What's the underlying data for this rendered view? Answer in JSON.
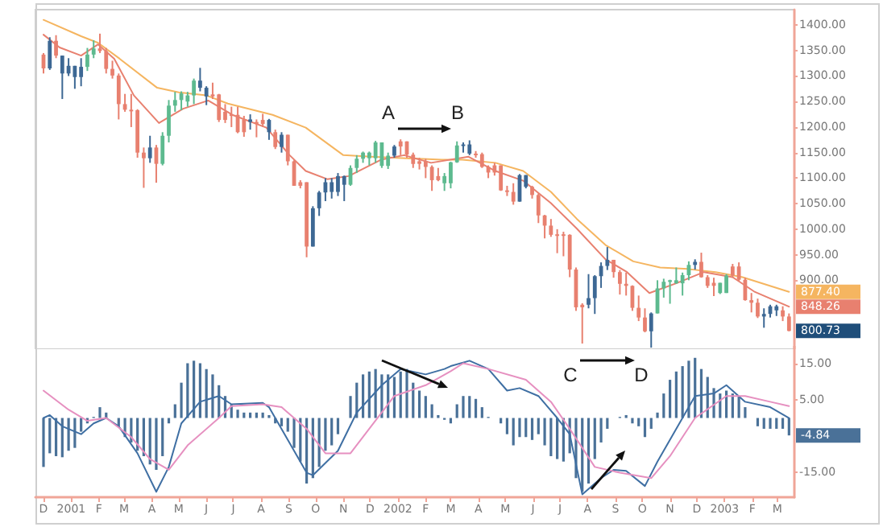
{
  "chart_data": [
    {
      "type": "candlestick",
      "x": [
        "2000-12-01",
        "2000-12-08",
        "2000-12-15",
        "2000-12-22",
        "2000-12-29",
        "2001-01-05",
        "2001-01-12",
        "2001-01-19",
        "2001-01-26",
        "2001-02-02",
        "2001-02-09",
        "2001-02-16",
        "2001-02-23",
        "2001-03-02",
        "2001-03-09",
        "2001-03-16",
        "2001-03-23",
        "2001-03-30",
        "2001-04-06",
        "2001-04-13",
        "2001-04-20",
        "2001-04-27",
        "2001-05-04",
        "2001-05-11",
        "2001-05-18",
        "2001-05-25",
        "2001-06-01",
        "2001-06-08",
        "2001-06-15",
        "2001-06-22",
        "2001-06-29",
        "2001-07-06",
        "2001-07-13",
        "2001-07-20",
        "2001-07-27",
        "2001-08-03",
        "2001-08-10",
        "2001-08-17",
        "2001-08-24",
        "2001-08-31",
        "2001-09-07",
        "2001-09-14",
        "2001-09-21",
        "2001-09-28",
        "2001-10-05",
        "2001-10-12",
        "2001-10-19",
        "2001-10-26",
        "2001-11-02",
        "2001-11-09",
        "2001-11-16",
        "2001-11-23",
        "2001-11-30",
        "2001-12-07",
        "2001-12-14",
        "2001-12-21",
        "2001-12-28",
        "2002-01-04",
        "2002-01-11",
        "2002-01-18",
        "2002-01-25",
        "2002-02-01",
        "2002-02-08",
        "2002-02-15",
        "2002-02-22",
        "2002-03-01",
        "2002-03-08",
        "2002-03-15",
        "2002-03-22",
        "2002-03-29",
        "2002-04-05",
        "2002-04-12",
        "2002-04-19",
        "2002-04-26",
        "2002-05-03",
        "2002-05-10",
        "2002-05-17",
        "2002-05-24",
        "2002-05-31",
        "2002-06-07",
        "2002-06-14",
        "2002-06-21",
        "2002-06-28",
        "2002-07-05",
        "2002-07-12",
        "2002-07-19",
        "2002-07-26",
        "2002-08-02",
        "2002-08-09",
        "2002-08-16",
        "2002-08-23",
        "2002-08-30",
        "2002-09-06",
        "2002-09-13",
        "2002-09-20",
        "2002-09-27",
        "2002-10-04",
        "2002-10-11",
        "2002-10-18",
        "2002-10-25",
        "2002-11-01",
        "2002-11-08",
        "2002-11-15",
        "2002-11-22",
        "2002-11-29",
        "2002-12-06",
        "2002-12-13",
        "2002-12-20",
        "2002-12-27",
        "2003-01-03",
        "2003-01-10",
        "2003-01-17",
        "2003-01-24",
        "2003-01-31",
        "2003-02-07",
        "2003-02-14",
        "2003-02-21",
        "2003-02-28",
        "2003-03-07",
        "2003-03-14"
      ],
      "ohlc": [
        [
          1342,
          1345,
          1305,
          1315
        ],
        [
          1315,
          1376,
          1312,
          1369
        ],
        [
          1369,
          1380,
          1335,
          1340
        ],
        [
          1340,
          1340,
          1255,
          1305
        ],
        [
          1305,
          1335,
          1300,
          1320
        ],
        [
          1320,
          1320,
          1275,
          1298
        ],
        [
          1298,
          1335,
          1280,
          1318
        ],
        [
          1318,
          1355,
          1310,
          1342
        ],
        [
          1342,
          1370,
          1335,
          1354
        ],
        [
          1354,
          1383,
          1345,
          1349
        ],
        [
          1349,
          1355,
          1305,
          1314
        ],
        [
          1314,
          1330,
          1295,
          1301
        ],
        [
          1301,
          1305,
          1215,
          1245
        ],
        [
          1245,
          1265,
          1230,
          1234
        ],
        [
          1234,
          1265,
          1200,
          1233
        ],
        [
          1233,
          1235,
          1140,
          1150
        ],
        [
          1150,
          1160,
          1081,
          1139
        ],
        [
          1139,
          1183,
          1130,
          1160
        ],
        [
          1160,
          1165,
          1091,
          1128
        ],
        [
          1128,
          1190,
          1125,
          1183
        ],
        [
          1183,
          1253,
          1170,
          1242
        ],
        [
          1242,
          1269,
          1230,
          1253
        ],
        [
          1253,
          1270,
          1233,
          1266
        ],
        [
          1250,
          1269,
          1240,
          1262
        ],
        [
          1262,
          1295,
          1245,
          1291
        ],
        [
          1291,
          1316,
          1270,
          1277
        ],
        [
          1277,
          1280,
          1243,
          1260
        ],
        [
          1264,
          1287,
          1255,
          1260
        ],
        [
          1264,
          1265,
          1210,
          1214
        ],
        [
          1230,
          1245,
          1208,
          1214
        ],
        [
          1225,
          1240,
          1200,
          1224
        ],
        [
          1224,
          1240,
          1188,
          1190
        ],
        [
          1215,
          1222,
          1181,
          1190
        ],
        [
          1215,
          1225,
          1195,
          1210
        ],
        [
          1210,
          1215,
          1180,
          1206
        ],
        [
          1214,
          1226,
          1200,
          1206
        ],
        [
          1214,
          1216,
          1175,
          1190
        ],
        [
          1190,
          1195,
          1157,
          1161
        ],
        [
          1161,
          1190,
          1150,
          1185
        ],
        [
          1185,
          1185,
          1125,
          1133
        ],
        [
          1133,
          1135,
          1085,
          1085
        ],
        [
          1092,
          1096,
          1080,
          1085
        ],
        [
          1092,
          1092,
          945,
          966
        ],
        [
          966,
          1045,
          966,
          1041
        ],
        [
          1041,
          1075,
          1026,
          1072
        ],
        [
          1072,
          1100,
          1055,
          1092
        ],
        [
          1092,
          1100,
          1060,
          1073
        ],
        [
          1073,
          1110,
          1065,
          1104
        ],
        [
          1104,
          1105,
          1055,
          1087
        ],
        [
          1087,
          1125,
          1085,
          1120
        ],
        [
          1120,
          1145,
          1110,
          1138
        ],
        [
          1138,
          1152,
          1130,
          1150
        ],
        [
          1139,
          1152,
          1125,
          1150
        ],
        [
          1139,
          1173,
          1130,
          1170
        ],
        [
          1124,
          1170,
          1120,
          1170
        ],
        [
          1124,
          1150,
          1118,
          1144
        ],
        [
          1144,
          1165,
          1140,
          1162
        ],
        [
          1172,
          1176,
          1145,
          1162
        ],
        [
          1172,
          1172,
          1140,
          1146
        ],
        [
          1146,
          1150,
          1120,
          1128
        ],
        [
          1133,
          1140,
          1117,
          1128
        ],
        [
          1133,
          1138,
          1100,
          1122
        ],
        [
          1122,
          1125,
          1075,
          1096
        ],
        [
          1104,
          1120,
          1094,
          1096
        ],
        [
          1090,
          1110,
          1075,
          1104
        ],
        [
          1090,
          1132,
          1080,
          1131
        ],
        [
          1131,
          1172,
          1130,
          1164
        ],
        [
          1164,
          1170,
          1150,
          1166
        ],
        [
          1166,
          1174,
          1145,
          1148
        ],
        [
          1148,
          1153,
          1140,
          1147
        ],
        [
          1147,
          1150,
          1120,
          1122
        ],
        [
          1122,
          1125,
          1100,
          1111
        ],
        [
          1125,
          1130,
          1105,
          1111
        ],
        [
          1125,
          1125,
          1075,
          1076
        ],
        [
          1076,
          1085,
          1065,
          1073
        ],
        [
          1073,
          1090,
          1048,
          1054
        ],
        [
          1054,
          1108,
          1054,
          1106
        ],
        [
          1106,
          1106,
          1080,
          1083
        ],
        [
          1083,
          1085,
          1060,
          1067
        ],
        [
          1067,
          1070,
          1012,
          1027
        ],
        [
          1027,
          1028,
          982,
          1007
        ],
        [
          1007,
          1020,
          985,
          989
        ],
        [
          990,
          1000,
          953,
          989
        ],
        [
          990,
          995,
          947,
          989
        ],
        [
          989,
          990,
          906,
          921
        ],
        [
          921,
          925,
          840,
          847
        ],
        [
          852,
          855,
          776,
          847
        ],
        [
          852,
          912,
          845,
          865
        ],
        [
          865,
          910,
          834,
          908
        ],
        [
          908,
          935,
          885,
          928
        ],
        [
          928,
          965,
          920,
          940
        ],
        [
          940,
          940,
          905,
          916
        ],
        [
          916,
          920,
          872,
          893
        ],
        [
          893,
          915,
          870,
          889
        ],
        [
          889,
          890,
          840,
          846
        ],
        [
          846,
          870,
          820,
          827
        ],
        [
          827,
          845,
          798,
          800
        ],
        [
          800,
          837,
          768,
          835
        ],
        [
          835,
          900,
          835,
          884
        ],
        [
          884,
          903,
          866,
          897
        ],
        [
          897,
          901,
          854,
          900
        ],
        [
          894,
          925,
          893,
          900
        ],
        [
          894,
          915,
          870,
          910
        ],
        [
          910,
          937,
          900,
          930
        ],
        [
          930,
          941,
          921,
          936
        ],
        [
          936,
          954,
          905,
          906
        ],
        [
          906,
          910,
          885,
          889
        ],
        [
          895,
          905,
          869,
          889
        ],
        [
          875,
          895,
          873,
          895
        ],
        [
          875,
          912,
          875,
          909
        ],
        [
          927,
          932,
          905,
          909
        ],
        [
          927,
          935,
          898,
          901
        ],
        [
          901,
          905,
          860,
          861
        ],
        [
          861,
          875,
          837,
          856
        ],
        [
          856,
          864,
          826,
          829
        ],
        [
          829,
          845,
          807,
          834
        ],
        [
          834,
          852,
          827,
          849
        ],
        [
          849,
          852,
          830,
          841
        ],
        [
          841,
          849,
          820,
          829
        ],
        [
          829,
          835,
          800,
          800.73
        ]
      ],
      "colors": [
        "#e8806f",
        "#3d6894",
        "#e8806f",
        "#3d6894",
        "#3d6894",
        "#3d6894",
        "#3d6894",
        "#5dba8f",
        "#5dba8f",
        "#e8806f",
        "#e8806f",
        "#e8806f",
        "#e8806f",
        "#e8806f",
        "#e8806f",
        "#e8806f",
        "#e8806f",
        "#3d6894",
        "#e8806f",
        "#5dba8f",
        "#5dba8f",
        "#5dba8f",
        "#5dba8f",
        "#5dba8f",
        "#5dba8f",
        "#3d6894",
        "#3d6894",
        "#e8806f",
        "#e8806f",
        "#e8806f",
        "#e8806f",
        "#e8806f",
        "#e8806f",
        "#3d6894",
        "#e8806f",
        "#e8806f",
        "#3d6894",
        "#e8806f",
        "#3d6894",
        "#e8806f",
        "#e8806f",
        "#e8806f",
        "#e8806f",
        "#3d6894",
        "#3d6894",
        "#3d6894",
        "#3d6894",
        "#3d6894",
        "#3d6894",
        "#5dba8f",
        "#5dba8f",
        "#5dba8f",
        "#5dba8f",
        "#5dba8f",
        "#5dba8f",
        "#5dba8f",
        "#3d6894",
        "#e8806f",
        "#e8806f",
        "#e8806f",
        "#e8806f",
        "#e8806f",
        "#e8806f",
        "#e8806f",
        "#5dba8f",
        "#5dba8f",
        "#5dba8f",
        "#3d6894",
        "#3d6894",
        "#e8806f",
        "#e8806f",
        "#e8806f",
        "#e8806f",
        "#e8806f",
        "#e8806f",
        "#e8806f",
        "#3d6894",
        "#3d6894",
        "#e8806f",
        "#e8806f",
        "#e8806f",
        "#e8806f",
        "#e8806f",
        "#e8806f",
        "#e8806f",
        "#e8806f",
        "#e8806f",
        "#3d6894",
        "#3d6894",
        "#3d6894",
        "#3d6894",
        "#e8806f",
        "#e8806f",
        "#e8806f",
        "#e8806f",
        "#e8806f",
        "#e8806f",
        "#3d6894",
        "#5dba8f",
        "#5dba8f",
        "#5dba8f",
        "#5dba8f",
        "#5dba8f",
        "#5dba8f",
        "#3d6894",
        "#e8806f",
        "#e8806f",
        "#e8806f",
        "#5dba8f",
        "#5dba8f",
        "#e8806f",
        "#e8806f",
        "#e8806f",
        "#e8806f",
        "#e8806f",
        "#3d6894",
        "#3d6894",
        "#3d6894",
        "#e8806f",
        "#e8806f"
      ],
      "series": [
        {
          "type": "line",
          "color": "#f5b560",
          "x": [
            "2000-12-01",
            "2001-01-12",
            "2001-01-31",
            "2001-02-24",
            "2001-04-07",
            "2001-05-01",
            "2001-06-01",
            "2001-06-25",
            "2001-08-14",
            "2001-09-20",
            "2001-11-01",
            "2001-12-02",
            "2002-02-19",
            "2002-03-14",
            "2002-04-20",
            "2002-05-21",
            "2002-06-21",
            "2002-07-20",
            "2002-08-21",
            "2002-09-21",
            "2002-10-21",
            "2002-11-21",
            "2002-12-22",
            "2003-01-21",
            "2003-03-14"
          ],
          "values": [
            1410,
            1378,
            1365,
            1334,
            1277,
            1268,
            1262,
            1246,
            1224,
            1199,
            1145,
            1142,
            1136,
            1136,
            1130,
            1114,
            1073,
            1020,
            969,
            937,
            925,
            922,
            916,
            906,
            877.4
          ]
        },
        {
          "type": "line",
          "color": "#e8806f",
          "x": [
            "2000-12-01",
            "2000-12-19",
            "2001-01-12",
            "2001-01-31",
            "2001-02-18",
            "2001-03-12",
            "2001-04-09",
            "2001-05-06",
            "2001-06-03",
            "2001-06-30",
            "2001-08-07",
            "2001-09-02",
            "2001-09-20",
            "2001-10-14",
            "2001-11-07",
            "2001-12-13",
            "2002-01-08",
            "2002-02-07",
            "2002-03-21",
            "2002-04-20",
            "2002-05-21",
            "2002-06-21",
            "2002-07-20",
            "2002-08-21",
            "2002-09-14",
            "2002-10-09",
            "2002-11-08",
            "2002-12-09",
            "2003-01-10",
            "2003-02-03",
            "2003-03-14"
          ],
          "values": [
            1381,
            1356,
            1340,
            1362,
            1334,
            1262,
            1208,
            1236,
            1252,
            1224,
            1199,
            1145,
            1114,
            1098,
            1104,
            1136,
            1145,
            1130,
            1142,
            1114,
            1095,
            1051,
            1001,
            941,
            916,
            875,
            894,
            916,
            906,
            878,
            848.26
          ]
        }
      ],
      "xlim": [
        "2000-11-22",
        "2003-03-20"
      ],
      "ylim": [
        765,
        1430
      ],
      "yticks": [
        {
          "value": 900,
          "label": "900.00"
        },
        {
          "value": 950,
          "label": "950.00"
        },
        {
          "value": 1000,
          "label": "1000.00"
        },
        {
          "value": 1050,
          "label": "1050.00"
        },
        {
          "value": 1100,
          "label": "1100.00"
        },
        {
          "value": 1150,
          "label": "1150.00"
        },
        {
          "value": 1200,
          "label": "1200.00"
        },
        {
          "value": 1250,
          "label": "1250.00"
        },
        {
          "value": 1300,
          "label": "1300.00"
        },
        {
          "value": 1350,
          "label": "1350.00"
        },
        {
          "value": 1400,
          "label": "1400.00"
        }
      ],
      "tick_labels": "y",
      "marker": "none",
      "annotations": [
        "A",
        "B",
        {
          "text": "877.40",
          "x": "2003-03-14",
          "y": 877.4
        },
        {
          "text": "848.26",
          "x": "2003-03-14",
          "y": 848.26
        },
        {
          "text": "800.73",
          "x": "2003-03-14",
          "y": 800.73
        }
      ]
    },
    {
      "type": "bar",
      "color": "#4a7198",
      "x": [
        "2000-12-01",
        "2000-12-08",
        "2000-12-15",
        "2000-12-22",
        "2000-12-29",
        "2001-01-05",
        "2001-01-12",
        "2001-01-19",
        "2001-01-26",
        "2001-02-02",
        "2001-02-09",
        "2001-02-16",
        "2001-02-23",
        "2001-03-02",
        "2001-03-09",
        "2001-03-16",
        "2001-03-23",
        "2001-03-30",
        "2001-04-06",
        "2001-04-13",
        "2001-04-20",
        "2001-04-27",
        "2001-05-04",
        "2001-05-11",
        "2001-05-18",
        "2001-05-25",
        "2001-06-01",
        "2001-06-08",
        "2001-06-15",
        "2001-06-22",
        "2001-06-29",
        "2001-07-06",
        "2001-07-13",
        "2001-07-20",
        "2001-07-27",
        "2001-08-03",
        "2001-08-10",
        "2001-08-17",
        "2001-08-24",
        "2001-08-31",
        "2001-09-07",
        "2001-09-14",
        "2001-09-21",
        "2001-09-28",
        "2001-10-05",
        "2001-10-12",
        "2001-10-19",
        "2001-10-26",
        "2001-11-02",
        "2001-11-09",
        "2001-11-16",
        "2001-11-23",
        "2001-11-30",
        "2001-12-07",
        "2001-12-14",
        "2001-12-21",
        "2001-12-28",
        "2002-01-04",
        "2002-01-11",
        "2002-01-18",
        "2002-01-25",
        "2002-02-01",
        "2002-02-08",
        "2002-02-15",
        "2002-02-22",
        "2002-03-01",
        "2002-03-08",
        "2002-03-15",
        "2002-03-22",
        "2002-03-29",
        "2002-04-05",
        "2002-04-12",
        "2002-04-19",
        "2002-04-26",
        "2002-05-03",
        "2002-05-10",
        "2002-05-17",
        "2002-05-24",
        "2002-05-31",
        "2002-06-07",
        "2002-06-14",
        "2002-06-21",
        "2002-06-28",
        "2002-07-05",
        "2002-07-12",
        "2002-07-19",
        "2002-07-26",
        "2002-08-02",
        "2002-08-09",
        "2002-08-16",
        "2002-08-23",
        "2002-08-30",
        "2002-09-06",
        "2002-09-13",
        "2002-09-20",
        "2002-09-27",
        "2002-10-04",
        "2002-10-11",
        "2002-10-18",
        "2002-10-25",
        "2002-11-01",
        "2002-11-08",
        "2002-11-15",
        "2002-11-22",
        "2002-11-29",
        "2002-12-06",
        "2002-12-13",
        "2002-12-20",
        "2002-12-27",
        "2003-01-03",
        "2003-01-10",
        "2003-01-17",
        "2003-01-24",
        "2003-01-31",
        "2003-02-07",
        "2003-02-14",
        "2003-02-21",
        "2003-02-28",
        "2003-03-07",
        "2003-03-14"
      ],
      "values": [
        -13.6,
        -9.8,
        -10.6,
        -10.9,
        -9.1,
        -8.3,
        -3.8,
        -1.5,
        0.3,
        3.0,
        1.5,
        0,
        -2.3,
        -5.3,
        -6.8,
        -9.1,
        -10.6,
        -12.9,
        -14.4,
        -10.6,
        -1.5,
        3.8,
        9.8,
        15.2,
        15.9,
        15.2,
        13.6,
        12.1,
        9.1,
        6.1,
        3.8,
        2.3,
        1.5,
        1.5,
        1.5,
        1.5,
        0.8,
        -1.5,
        -2.3,
        -3.8,
        -8.3,
        -12.1,
        -18.2,
        -16.7,
        -13.6,
        -9.1,
        -7.6,
        -4.5,
        0,
        6.1,
        9.8,
        12.1,
        12.9,
        13.6,
        12.1,
        12.1,
        11.4,
        12.9,
        13.6,
        9.8,
        7.6,
        6.1,
        3.8,
        0.8,
        -0.5,
        -1.5,
        3.8,
        6.1,
        6.1,
        5.3,
        3.0,
        0.3,
        0,
        -1.5,
        -4.5,
        -7.6,
        -5.3,
        -5.3,
        -6.1,
        -4.5,
        -7.6,
        -10.6,
        -11.4,
        -12.1,
        -9.8,
        -16.7,
        -20.5,
        -18.2,
        -11.4,
        -6.8,
        -3.0,
        0,
        0.3,
        0.8,
        -1.5,
        -2.3,
        -5.3,
        -3.0,
        1.5,
        6.8,
        10.6,
        12.9,
        14.4,
        15.9,
        16.7,
        13.6,
        11.4,
        8.3,
        6.8,
        7.6,
        6.8,
        6.1,
        3.0,
        0,
        -2.3,
        -3.0,
        -3.0,
        -3.0,
        -3.0,
        -4.84
      ],
      "series": [
        {
          "type": "line",
          "color": "#3f6fa3",
          "x": [
            "2000-12-01",
            "2000-12-08",
            "2000-12-22",
            "2001-01-12",
            "2001-01-26",
            "2001-02-09",
            "2001-02-23",
            "2001-03-16",
            "2001-04-06",
            "2001-04-20",
            "2001-05-04",
            "2001-05-25",
            "2001-06-15",
            "2001-06-29",
            "2001-08-03",
            "2001-08-10",
            "2001-08-31",
            "2001-09-21",
            "2001-09-28",
            "2001-10-26",
            "2001-11-16",
            "2001-12-14",
            "2002-01-04",
            "2002-02-01",
            "2002-02-22",
            "2002-03-01",
            "2002-03-22",
            "2002-04-12",
            "2002-05-03",
            "2002-05-17",
            "2002-06-07",
            "2002-06-28",
            "2002-07-12",
            "2002-07-26",
            "2002-08-16",
            "2002-08-30",
            "2002-09-13",
            "2002-10-04",
            "2002-10-18",
            "2002-11-15",
            "2002-11-29",
            "2002-12-20",
            "2003-01-03",
            "2003-01-24",
            "2003-02-21",
            "2003-03-14"
          ],
          "values": [
            0,
            0.8,
            -2.3,
            -4.5,
            -1.5,
            0,
            -2.3,
            -9.8,
            -20.5,
            -13.6,
            -1.5,
            4.5,
            6.1,
            3.8,
            4.2,
            3.0,
            -6.1,
            -15.2,
            -15.9,
            -9.1,
            1.5,
            9.1,
            13.6,
            12.1,
            13.6,
            14.4,
            15.9,
            13.6,
            7.6,
            8.3,
            6.1,
            0,
            -4.5,
            -21.2,
            -16.7,
            -14.4,
            -14.7,
            -18.9,
            -12.1,
            0,
            6.1,
            6.8,
            9.1,
            4.5,
            3.0,
            0
          ]
        },
        {
          "type": "line",
          "color": "#e690c0",
          "x": [
            "2000-12-01",
            "2000-12-29",
            "2001-01-19",
            "2001-02-09",
            "2001-03-09",
            "2001-03-30",
            "2001-04-20",
            "2001-05-11",
            "2001-06-15",
            "2001-06-29",
            "2001-08-03",
            "2001-08-24",
            "2001-09-21",
            "2001-10-12",
            "2001-11-09",
            "2001-11-30",
            "2001-12-28",
            "2002-02-01",
            "2002-03-01",
            "2002-03-15",
            "2002-04-12",
            "2002-05-24",
            "2002-06-21",
            "2002-07-12",
            "2002-08-09",
            "2002-09-06",
            "2002-10-11",
            "2002-11-01",
            "2002-11-29",
            "2003-01-03",
            "2003-01-24",
            "2003-02-21",
            "2003-03-14"
          ],
          "values": [
            7.6,
            2.3,
            -0.8,
            0,
            -5.3,
            -11.4,
            -14.4,
            -7.6,
            0,
            3.3,
            3.8,
            3.0,
            -3.0,
            -9.8,
            -9.8,
            -3.0,
            6.1,
            9.1,
            13.0,
            15.2,
            13.6,
            10.6,
            4.5,
            -3.0,
            -13.6,
            -15.2,
            -16.7,
            -10.6,
            0,
            6.1,
            6.1,
            4.5,
            3.3
          ]
        }
      ],
      "xlim": [
        "2000-11-22",
        "2003-03-20"
      ],
      "xticks": [
        {
          "value": "2000-12-01",
          "label": "D"
        },
        {
          "value": "2001-01-01",
          "label": "2001"
        },
        {
          "value": "2001-02-01",
          "label": "F"
        },
        {
          "value": "2001-03-01",
          "label": "M"
        },
        {
          "value": "2001-04-01",
          "label": "A"
        },
        {
          "value": "2001-05-01",
          "label": "M"
        },
        {
          "value": "2001-06-01",
          "label": "J"
        },
        {
          "value": "2001-07-01",
          "label": "J"
        },
        {
          "value": "2001-08-01",
          "label": "A"
        },
        {
          "value": "2001-09-01",
          "label": "S"
        },
        {
          "value": "2001-10-01",
          "label": "O"
        },
        {
          "value": "2001-11-01",
          "label": "N"
        },
        {
          "value": "2001-12-01",
          "label": "D"
        },
        {
          "value": "2002-01-01",
          "label": "2002"
        },
        {
          "value": "2002-02-01",
          "label": "F"
        },
        {
          "value": "2002-03-01",
          "label": "M"
        },
        {
          "value": "2002-04-01",
          "label": "A"
        },
        {
          "value": "2002-05-01",
          "label": "M"
        },
        {
          "value": "2002-06-01",
          "label": "J"
        },
        {
          "value": "2002-07-01",
          "label": "J"
        },
        {
          "value": "2002-08-01",
          "label": "A"
        },
        {
          "value": "2002-09-01",
          "label": "S"
        },
        {
          "value": "2002-10-01",
          "label": "O"
        },
        {
          "value": "2002-11-01",
          "label": "N"
        },
        {
          "value": "2002-12-01",
          "label": "D"
        },
        {
          "value": "2003-01-01",
          "label": "2003"
        },
        {
          "value": "2003-02-01",
          "label": "F"
        },
        {
          "value": "2003-03-01",
          "label": "M"
        }
      ],
      "ylim": [
        -22,
        20
      ],
      "yticks": [
        {
          "value": 15,
          "label": "15.00"
        },
        {
          "value": 5,
          "label": "5.00"
        },
        {
          "value": -15,
          "label": "-15.00"
        }
      ],
      "marker": "none",
      "annotations": [
        "C",
        "D",
        {
          "text": "-4.84",
          "x": "2003-03-14",
          "y": -4.84
        }
      ]
    }
  ]
}
